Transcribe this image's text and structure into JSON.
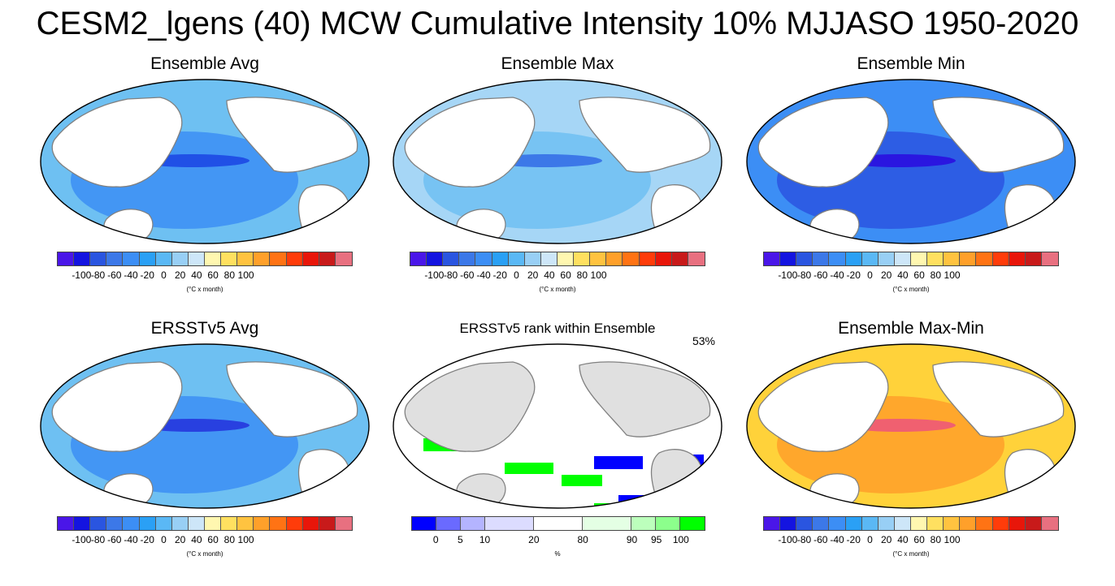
{
  "title": "CESM2_lgens (40) MCW Cumulative Intensity 10% MJJASO 1950-2020",
  "colors": {
    "intensity": [
      "#4a16e8",
      "#1414e0",
      "#2a55e0",
      "#3c78e8",
      "#3c8ef5",
      "#2aa0f5",
      "#5ab8f5",
      "#98cff5",
      "#cde6f8",
      "#fff7b0",
      "#ffe060",
      "#ffc340",
      "#ffa02a",
      "#ff7314",
      "#ff3c0a",
      "#e8160a",
      "#c81a1a",
      "#e87080"
    ],
    "rank": [
      "#0000ff",
      "#6a6aff",
      "#b4b4ff",
      "#dcdcff",
      "#ffffff",
      "#e4ffe4",
      "#bcffbc",
      "#8cff8c",
      "#00ff00"
    ],
    "ocean_styles": {
      "avg": [
        "#6ec0f2",
        "#3c8ef5",
        "#2050e6"
      ],
      "max": [
        "#a6d6f6",
        "#6ec0f2",
        "#3c78e8"
      ],
      "min": [
        "#3c8ef5",
        "#2a55e0",
        "#2a16e0"
      ],
      "obs": [
        "#6ec0f2",
        "#3c8ef5",
        "#2840e0"
      ],
      "rank": [
        "#ffffff",
        "#0000ff",
        "#00ff00"
      ],
      "range": [
        "#ffd23a",
        "#ffa02a",
        "#f06070"
      ]
    },
    "land": "#ffffff",
    "land_gray": "#e0e0e0",
    "coast": "#808080"
  },
  "chart_data": [
    {
      "type": "heatmap",
      "title": "Ensemble Avg",
      "style": "avg",
      "colorbar": "intensity",
      "ticks": [
        "-100",
        "-80",
        "-60",
        "-40",
        "-20",
        "0",
        "20",
        "40",
        "60",
        "80",
        "100"
      ],
      "units": "(°C x month)",
      "levels": [
        -100,
        -90,
        -80,
        -70,
        -60,
        -50,
        -40,
        -30,
        -20,
        -10,
        0,
        10,
        20,
        30,
        40,
        50,
        60,
        70,
        80,
        90,
        100
      ]
    },
    {
      "type": "heatmap",
      "title": "Ensemble Max",
      "style": "max",
      "colorbar": "intensity",
      "ticks": [
        "-100",
        "-80",
        "-60",
        "-40",
        "-20",
        "0",
        "20",
        "40",
        "60",
        "80",
        "100"
      ],
      "units": "(°C x month)"
    },
    {
      "type": "heatmap",
      "title": "Ensemble Min",
      "style": "min",
      "colorbar": "intensity",
      "ticks": [
        "-100",
        "-80",
        "-60",
        "-40",
        "-20",
        "0",
        "20",
        "40",
        "60",
        "80",
        "100"
      ],
      "units": "(°C x month)"
    },
    {
      "type": "heatmap",
      "title": "ERSSTv5 Avg",
      "style": "obs",
      "colorbar": "intensity",
      "ticks": [
        "-100",
        "-80",
        "-60",
        "-40",
        "-20",
        "0",
        "20",
        "40",
        "60",
        "80",
        "100"
      ],
      "units": "(°C x month)"
    },
    {
      "type": "heatmap",
      "title": "ERSSTv5 rank within Ensemble",
      "style": "rank",
      "colorbar": "rank",
      "ticks": [
        "0",
        "5",
        "10",
        "20",
        "80",
        "90",
        "95",
        "100"
      ],
      "units": "%",
      "corner_label": "53%",
      "levels": [
        0,
        5,
        10,
        20,
        80,
        90,
        95,
        100
      ]
    },
    {
      "type": "heatmap",
      "title": "Ensemble Max-Min",
      "style": "range",
      "colorbar": "intensity",
      "ticks": [
        "-100",
        "-80",
        "-60",
        "-40",
        "-20",
        "0",
        "20",
        "40",
        "60",
        "80",
        "100"
      ],
      "units": "(°C x month)"
    }
  ]
}
